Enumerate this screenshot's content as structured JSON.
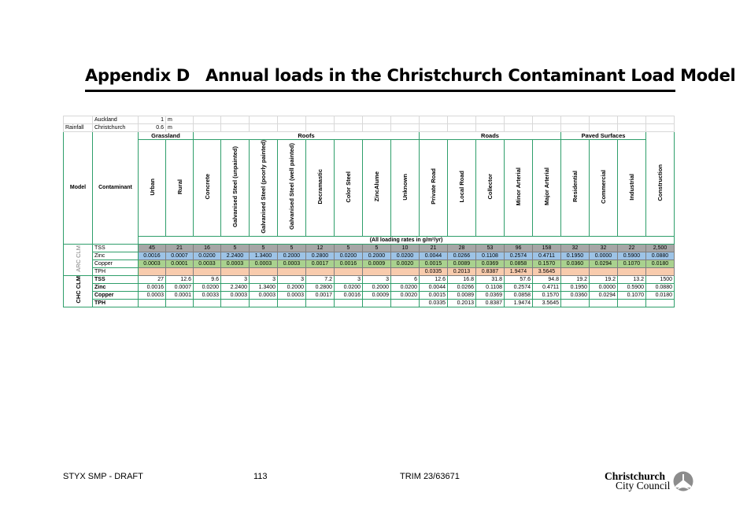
{
  "page": {
    "appendix_label": "Appendix D",
    "title": "Annual loads in the Christchurch Contaminant Load Model"
  },
  "rainfall": {
    "label": "Rainfall",
    "rows": [
      {
        "place": "Auckland",
        "value": "1",
        "unit": "m"
      },
      {
        "place": "Christchurch",
        "value": "0.6",
        "unit": "m"
      }
    ]
  },
  "table": {
    "model_header": "Model",
    "contaminant_header": "Contaminant",
    "groups": {
      "grassland": "Grassland",
      "roofs": "Roofs",
      "roads": "Roads",
      "paved": "Paved Surfaces"
    },
    "columns": [
      "Urban",
      "Rural",
      "Concrete",
      "Galvanised Steel (unpainted)",
      "Galvanised Steel (poorly painted)",
      "Galvanised Steel (well painted)",
      "Decramastic",
      "Color Steel",
      "ZincAlume",
      "Unknown",
      "Private Road",
      "Local Road",
      "Collector",
      "Minor Arterial",
      "Major Arterial",
      "Residential",
      "Commercial",
      "Industrial",
      "Construction"
    ],
    "units_note": "(All loading rates in g/m²/yr)",
    "arc": {
      "label": "ARC CLM",
      "rows": [
        {
          "name": "TSS",
          "color": "#a6a6a6",
          "values": [
            "45",
            "21",
            "16",
            "5",
            "5",
            "5",
            "12",
            "5",
            "5",
            "10",
            "21",
            "28",
            "53",
            "96",
            "158",
            "32",
            "32",
            "22",
            "2,500"
          ]
        },
        {
          "name": "Zinc",
          "color": "#9dc3e6",
          "values": [
            "0.0016",
            "0.0007",
            "0.0200",
            "2.2400",
            "1.3400",
            "0.2000",
            "0.2800",
            "0.0200",
            "0.2000",
            "0.0200",
            "0.0044",
            "0.0266",
            "0.1108",
            "0.2574",
            "0.4711",
            "0.1950",
            "0.0000",
            "0.5900",
            "0.0880"
          ]
        },
        {
          "name": "Copper",
          "color": "#a9d18e",
          "values": [
            "0.0003",
            "0.0001",
            "0.0033",
            "0.0003",
            "0.0003",
            "0.0003",
            "0.0017",
            "0.0016",
            "0.0009",
            "0.0020",
            "0.0015",
            "0.0089",
            "0.0369",
            "0.0858",
            "0.1570",
            "0.0360",
            "0.0294",
            "0.1070",
            "0.0180"
          ]
        },
        {
          "name": "TPH",
          "color": "#f8cbad",
          "values": [
            "",
            "",
            "",
            "",
            "",
            "",
            "",
            "",
            "",
            "",
            "0.0335",
            "0.2013",
            "0.8387",
            "1.9474",
            "3.5645",
            "",
            "",
            "",
            ""
          ]
        }
      ]
    },
    "chc": {
      "label": "CHC CLM",
      "rows": [
        {
          "name": "TSS",
          "values": [
            "27",
            "12.6",
            "9.6",
            "3",
            "3",
            "3",
            "7.2",
            "3",
            "3",
            "6",
            "12.6",
            "16.8",
            "31.8",
            "57.6",
            "94.8",
            "19.2",
            "19.2",
            "13.2",
            "1500"
          ]
        },
        {
          "name": "Zinc",
          "values": [
            "0.0016",
            "0.0007",
            "0.0200",
            "2.2400",
            "1.3400",
            "0.2000",
            "0.2800",
            "0.0200",
            "0.2000",
            "0.0200",
            "0.0044",
            "0.0266",
            "0.1108",
            "0.2574",
            "0.4711",
            "0.1950",
            "0.0000",
            "0.5900",
            "0.0880"
          ]
        },
        {
          "name": "Copper",
          "values": [
            "0.0003",
            "0.0001",
            "0.0033",
            "0.0003",
            "0.0003",
            "0.0003",
            "0.0017",
            "0.0016",
            "0.0009",
            "0.0020",
            "0.0015",
            "0.0089",
            "0.0369",
            "0.0858",
            "0.1570",
            "0.0360",
            "0.0294",
            "0.1070",
            "0.0180"
          ]
        },
        {
          "name": "TPH",
          "values": [
            "",
            "",
            "",
            "",
            "",
            "",
            "",
            "",
            "",
            "",
            "0.0335",
            "0.2013",
            "0.8387",
            "1.9474",
            "3.5645",
            "",
            "",
            "",
            ""
          ]
        }
      ]
    }
  },
  "footer": {
    "doc": "STYX SMP - DRAFT",
    "page_number": "113",
    "trim": "TRIM 23/63671",
    "logo_line1": "Christchurch",
    "logo_line2": "City Council"
  }
}
